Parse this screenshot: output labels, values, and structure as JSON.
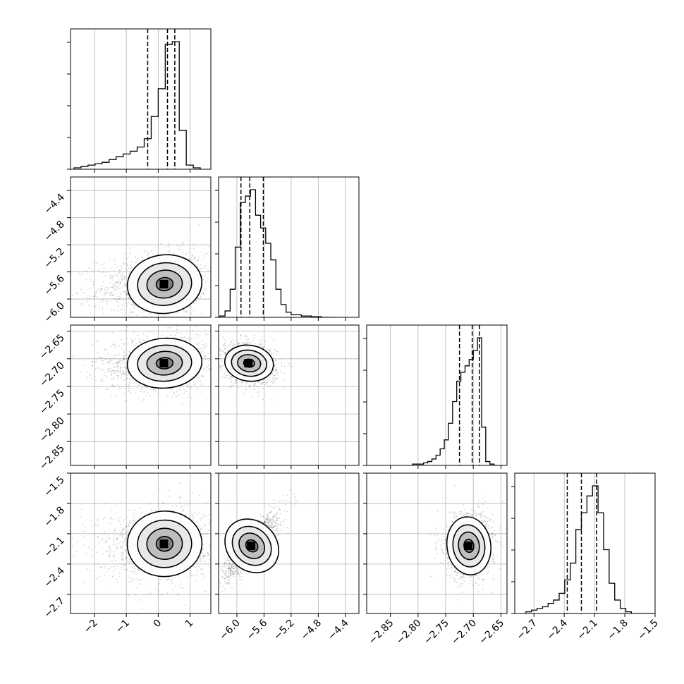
{
  "chart_data": {
    "type": "corner",
    "n_params": 4,
    "grid": true,
    "params": [
      {
        "range": [
          -2.75,
          1.65
        ],
        "ticks": [
          -2,
          -1,
          0,
          1
        ],
        "tick_labels": [
          "−2",
          "−1",
          "0",
          "1"
        ]
      },
      {
        "range": [
          -6.27,
          -4.2
        ],
        "ticks": [
          -6.0,
          -5.6,
          -5.2,
          -4.8,
          -4.4
        ],
        "tick_labels": [
          "−6.0",
          "−5.6",
          "−5.2",
          "−4.8",
          "−4.4"
        ]
      },
      {
        "range": [
          -2.893,
          -2.639
        ],
        "ticks": [
          -2.85,
          -2.8,
          -2.75,
          -2.7,
          -2.65
        ],
        "tick_labels": [
          "−2.85",
          "−2.80",
          "−2.75",
          "−2.70",
          "−2.65"
        ]
      },
      {
        "range": [
          -2.89,
          -1.5
        ],
        "ticks": [
          -2.7,
          -2.4,
          -2.1,
          -1.8,
          -1.5
        ],
        "tick_labels": [
          "−2.7",
          "−2.4",
          "−2.1",
          "−1.8",
          "−1.5"
        ]
      }
    ],
    "histograms": [
      {
        "param": 0,
        "bin_width": 0.22,
        "x": [
          -2.64,
          -2.42,
          -2.2,
          -1.98,
          -1.76,
          -1.54,
          -1.32,
          -1.1,
          -0.88,
          -0.66,
          -0.44,
          -0.22,
          0.0,
          0.22,
          0.44,
          0.66,
          0.88,
          1.1
        ],
        "counts": [
          1,
          2,
          3,
          4,
          5,
          7,
          9,
          11,
          13,
          16,
          22,
          38,
          58,
          90,
          92,
          28,
          3,
          1
        ],
        "quantiles": [
          -0.33,
          0.29,
          0.52
        ]
      },
      {
        "param": 1,
        "bin_width": 0.075,
        "x": [
          -6.25,
          -6.175,
          -6.1,
          -6.025,
          -5.95,
          -5.875,
          -5.8,
          -5.725,
          -5.65,
          -5.575,
          -5.5,
          -5.425,
          -5.35,
          -5.275,
          -5.2,
          -5.125,
          -5.05,
          -4.975,
          -4.9,
          -4.825,
          -4.75,
          -4.675,
          -4.6
        ],
        "counts": [
          1,
          5,
          22,
          55,
          90,
          95,
          100,
          80,
          70,
          58,
          45,
          22,
          10,
          4,
          2,
          2,
          1,
          1,
          0.5,
          0.5,
          0,
          0,
          0
        ],
        "quantiles": [
          -5.94,
          -5.81,
          -5.61
        ]
      },
      {
        "param": 2,
        "bin_width": 0.0075,
        "x": [
          -2.81,
          -2.7975,
          -2.79,
          -2.7825,
          -2.775,
          -2.7675,
          -2.76,
          -2.7525,
          -2.745,
          -2.7375,
          -2.73,
          -2.7225,
          -2.715,
          -2.7075,
          -2.7,
          -2.6925,
          -2.685,
          -2.6775,
          -2.67,
          -2.6625
        ],
        "counts": [
          1,
          1,
          2,
          3,
          5,
          8,
          13,
          20,
          33,
          50,
          66,
          73,
          78,
          83,
          90,
          100,
          30,
          3,
          1,
          0
        ],
        "quantiles": [
          -2.725,
          -2.702,
          -2.689
        ]
      },
      {
        "param": 3,
        "bin_width": 0.055,
        "x": [
          -2.78,
          -2.725,
          -2.67,
          -2.615,
          -2.56,
          -2.505,
          -2.45,
          -2.395,
          -2.34,
          -2.285,
          -2.23,
          -2.175,
          -2.12,
          -2.065,
          -2.01,
          -1.955,
          -1.9,
          -1.845,
          -1.79,
          -1.735,
          -1.68,
          -1.625,
          -1.57
        ],
        "counts": [
          1,
          2,
          3,
          4,
          6,
          8,
          12,
          20,
          30,
          50,
          60,
          70,
          76,
          60,
          38,
          18,
          8,
          3,
          1,
          0,
          0,
          0,
          0
        ],
        "quantiles": [
          -2.37,
          -2.23,
          -2.08
        ]
      }
    ],
    "contour_panels": [
      {
        "x_param": 0,
        "y_param": 1,
        "mean": [
          0.2,
          -5.78
        ],
        "sd": [
          0.65,
          0.24
        ],
        "corr": 0.15
      },
      {
        "x_param": 0,
        "y_param": 2,
        "mean": [
          0.2,
          -2.708
        ],
        "sd": [
          0.65,
          0.025
        ],
        "corr": 0.1
      },
      {
        "x_param": 1,
        "y_param": 2,
        "mean": [
          -5.82,
          -2.708
        ],
        "sd": [
          0.2,
          0.018
        ],
        "corr": -0.2
      },
      {
        "x_param": 0,
        "y_param": 3,
        "mean": [
          0.2,
          -2.2
        ],
        "sd": [
          0.65,
          0.18
        ],
        "corr": 0.05
      },
      {
        "x_param": 1,
        "y_param": 3,
        "mean": [
          -5.78,
          -2.22
        ],
        "sd": [
          0.2,
          0.16
        ],
        "corr": 0.85
      },
      {
        "x_param": 2,
        "y_param": 3,
        "mean": [
          -2.708,
          -2.22
        ],
        "sd": [
          0.022,
          0.16
        ],
        "corr": 0.1
      }
    ]
  }
}
